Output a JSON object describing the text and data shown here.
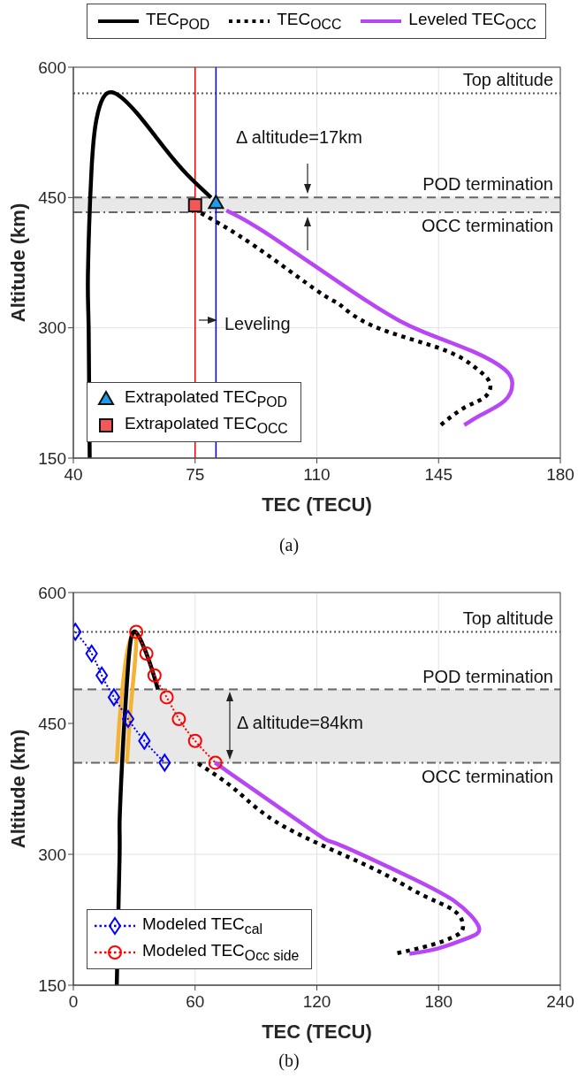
{
  "chart_data": [
    {
      "type": "line",
      "xlabel": "TEC (TECU)",
      "ylabel": "Altitude (km)",
      "xlim": [
        40,
        180
      ],
      "xticks": [
        40,
        75,
        110,
        145,
        180
      ],
      "ylim": [
        150,
        600
      ],
      "yticks": [
        150,
        300,
        450,
        600
      ],
      "grid": true,
      "legend": "top",
      "series": [
        {
          "name": "TEC$_{POD}$",
          "color": "#000000",
          "line_style": "solid",
          "x": [
            44.7,
            44.4,
            44.2,
            45.2,
            46.6,
            48.6,
            52,
            58.3,
            66,
            72.8,
            79.6
          ],
          "values": [
            150,
            300,
            363,
            480,
            539,
            565,
            570,
            547,
            508,
            476,
            450
          ]
        },
        {
          "name": "TEC$_{OCC}$",
          "color": "#000000",
          "line_style": "dotted",
          "x": [
            76.7,
            92.2,
            110.7,
            116.5,
            126.2,
            145.6,
            155.3,
            159.7,
            158.2,
            152.4,
            145.6
          ],
          "values": [
            432,
            394,
            341,
            327,
            302,
            276,
            255,
            237,
            220,
            208,
            188
          ]
        },
        {
          "name": "Leveled TEC$_{OCC}$",
          "color": "#b846f5",
          "line_style": "solid",
          "x": [
            84,
            97,
            124.3,
            140.8,
            155.3,
            164,
            166.2,
            164,
            157.3,
            152.4
          ],
          "values": [
            435,
            405,
            331,
            295,
            272,
            252,
            236,
            216,
            200,
            188
          ]
        },
        {
          "type": "scatter",
          "name": "Extrapolated TEC$_{POD}$",
          "color": "#1e9be9",
          "marker": "triangle",
          "x": [
            81
          ],
          "values": [
            444
          ]
        },
        {
          "type": "scatter",
          "name": "Extrapolated TEC$_{OCC}$",
          "color": "#f25858",
          "marker": "square",
          "x": [
            75
          ],
          "values": [
            441
          ]
        }
      ],
      "ref_lines": [
        {
          "axis": "y",
          "value": 570,
          "label": "Top altitude",
          "color": "#555555",
          "line_style": "dotted"
        },
        {
          "axis": "y",
          "value": 450,
          "label": "POD termination",
          "color": "#666666",
          "line_style": "dashed"
        },
        {
          "axis": "y",
          "value": 433,
          "label": "OCC termination",
          "color": "#666666",
          "line_style": "dashdot"
        },
        {
          "axis": "x",
          "value": 75,
          "color": "#ff0000",
          "line_style": "solid"
        },
        {
          "axis": "x",
          "value": 81,
          "color": "#0000ff",
          "line_style": "solid"
        }
      ],
      "bands": [
        {
          "axis": "y",
          "from": 433,
          "to": 450,
          "color": "#e8e8e8"
        }
      ],
      "annotations": [
        "(a)",
        "Δ altitude=17km",
        "Leveling"
      ]
    },
    {
      "type": "line",
      "xlabel": "TEC (TECU)",
      "ylabel": "Altitude (km)",
      "xlim": [
        0,
        240
      ],
      "xticks": [
        0,
        60,
        120,
        180,
        240
      ],
      "ylim": [
        150,
        600
      ],
      "yticks": [
        150,
        300,
        450,
        600
      ],
      "grid": true,
      "legend": "bottom left",
      "series": [
        {
          "color": "#f5b335",
          "line_style": "solid",
          "x": [
            21.4,
            22.8,
            24.7,
            26.9,
            29.4,
            31,
            30.2,
            28.2,
            26.4
          ],
          "values": [
            405,
            455,
            501,
            536,
            553,
            551,
            516,
            466,
            405
          ]
        },
        {
          "color": "#000000",
          "line_style": "solid",
          "x": [
            21.4,
            22.8,
            22.8,
            24,
            25.2,
            26.9,
            28.5,
            30.6,
            33.5,
            37.6,
            41.7
          ],
          "values": [
            150,
            300,
            338,
            404,
            454,
            513,
            548,
            555,
            544,
            520,
            489
          ]
        },
        {
          "color": "#000000",
          "line_style": "dotted",
          "x": [
            61.5,
            80.4,
            103.7,
            146.6,
            171.4,
            187.9,
            192,
            187.9,
            176.3,
            158.2
          ],
          "values": [
            404,
            373,
            332,
            285,
            254,
            235,
            216,
            206,
            196,
            186
          ]
        },
        {
          "color": "#b846f5",
          "line_style": "solid",
          "x": [
            69.8,
            118.5,
            130,
            163,
            188,
            199.8,
            194.5,
            179.6,
            165.6
          ],
          "values": [
            405,
            326,
            312,
            277,
            246,
            217,
            204,
            192,
            186
          ]
        },
        {
          "name": "Modeled TEC$_{cal}$",
          "color": "#0000ff",
          "line_style": "dotted",
          "marker": "diamond",
          "x": [
            1,
            9,
            14,
            20,
            27,
            35,
            45
          ],
          "values": [
            555,
            530,
            505,
            480,
            455,
            430,
            405
          ]
        },
        {
          "name": "Modeled TEC$_{Occ side}$",
          "color": "#ff0000",
          "line_style": "dotted",
          "marker": "circle",
          "x": [
            31,
            36,
            40,
            46,
            52,
            60,
            70
          ],
          "values": [
            555,
            530,
            505,
            480,
            455,
            430,
            405
          ]
        }
      ],
      "ref_lines": [
        {
          "axis": "y",
          "value": 555,
          "label": "Top altitude",
          "color": "#555555",
          "line_style": "dotted"
        },
        {
          "axis": "y",
          "value": 489,
          "label": "POD termination",
          "color": "#666666",
          "line_style": "dashed"
        },
        {
          "axis": "y",
          "value": 405,
          "label": "OCC termination",
          "color": "#666666",
          "line_style": "dashdot"
        }
      ],
      "bands": [
        {
          "axis": "y",
          "from": 405,
          "to": 489,
          "color": "#e8e8e8"
        }
      ],
      "annotations": [
        "(b)",
        "Δ altitude=84km"
      ]
    }
  ]
}
